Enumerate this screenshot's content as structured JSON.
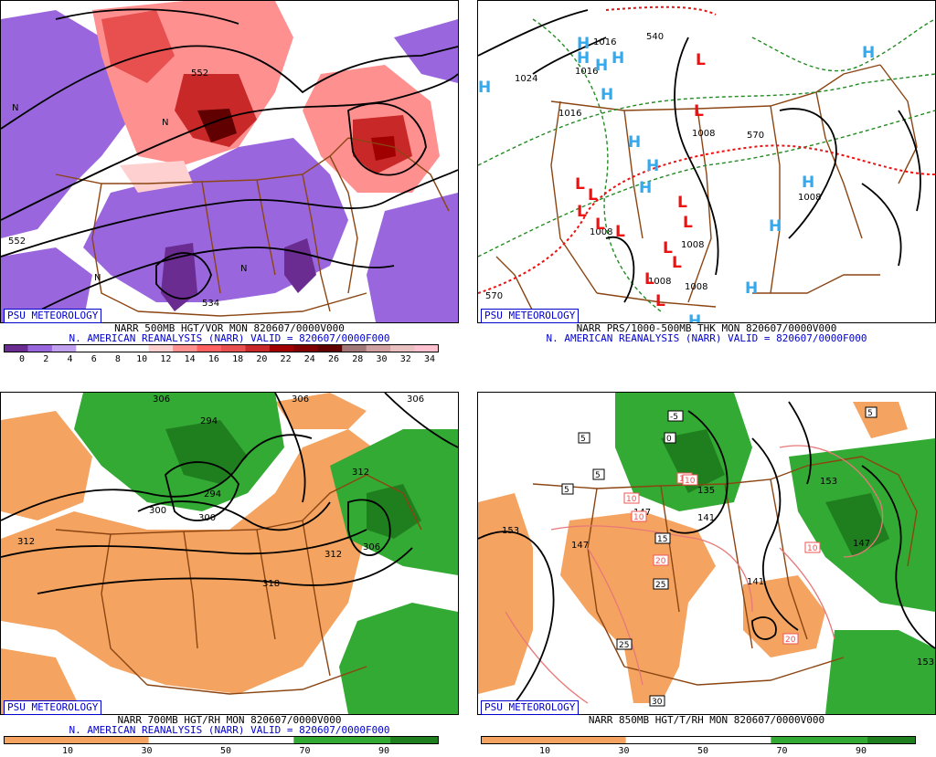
{
  "colors": {
    "vort_pos": [
      "#ffffff",
      "#ffd0d0",
      "#ff9090",
      "#e85050",
      "#c82828",
      "#a00000",
      "#600000"
    ],
    "vort_neg": "#9966dd",
    "dry": "#f4a460",
    "moist": "#33aa33",
    "moist_dark": "#1f7f1f",
    "border": "#8b4513",
    "high": "#33aaee",
    "low": "#ee1111",
    "credit": "#0000cc"
  },
  "panels": [
    {
      "id": "tl",
      "credit": "PSU METEOROLOGY",
      "line1": "NARR 500MB HGT/VOR MON 820607/0000V000",
      "line2": "N. AMERICAN REANALYSIS (NARR) VALID = 820607/0000F000",
      "colorbar": {
        "colors": [
          "#6a2c91",
          "#9966dd",
          "#c0a0ee",
          "#ffffff",
          "#ffffff",
          "#ffffff",
          "#ffd0d0",
          "#ff9090",
          "#ff6060",
          "#e85050",
          "#c82828",
          "#a00000",
          "#800000",
          "#600000",
          "#a07878",
          "#d0a0a0",
          "#e8c0c0",
          "#ffc0d0"
        ],
        "ticks": [
          "0",
          "2",
          "4",
          "6",
          "8",
          "10",
          "12",
          "14",
          "16",
          "18",
          "20",
          "22",
          "24",
          "26",
          "28",
          "30",
          "32",
          "34"
        ]
      },
      "contour_labels": [
        "552",
        "552",
        "534",
        "N",
        "N",
        "N",
        "N"
      ]
    },
    {
      "id": "tr",
      "credit": "PSU METEOROLOGY",
      "line1": "NARR PRS/1000-500MB THK MON 820607/0000V000",
      "line2": "N. AMERICAN REANALYSIS (NARR) VALID = 820607/0000F000",
      "pressure_labels": [
        "1024",
        "1016",
        "1016",
        "1016",
        "1008",
        "1008",
        "1008",
        "1008",
        "1008",
        "1008",
        "570",
        "540",
        "570"
      ],
      "high_symbol": "H",
      "low_symbol": "L"
    },
    {
      "id": "bl",
      "credit": "PSU METEOROLOGY",
      "line1": "NARR 700MB HGT/RH MON 820607/0000V000",
      "line2": "N. AMERICAN REANALYSIS (NARR) VALID = 820607/0000F000",
      "colorbar": {
        "colors": [
          "#f4a460",
          "#f4a460",
          "#f4a460",
          "#ffffff",
          "#ffffff",
          "#ffffff",
          "#33aa33",
          "#33aa33",
          "#1f7f1f"
        ],
        "ticks": [
          "10",
          "30",
          "50",
          "70",
          "90"
        ]
      },
      "contour_labels": [
        "306",
        "306",
        "294",
        "294",
        "300",
        "300",
        "306",
        "312",
        "312",
        "312",
        "318",
        "306"
      ]
    },
    {
      "id": "br",
      "credit": "PSU METEOROLOGY",
      "line1": "NARR 850MB HGT/T/RH MON 820607/0000V000",
      "line2": "",
      "colorbar": {
        "colors": [
          "#f4a460",
          "#f4a460",
          "#f4a460",
          "#ffffff",
          "#ffffff",
          "#ffffff",
          "#33aa33",
          "#33aa33",
          "#1f7f1f"
        ],
        "ticks": [
          "10",
          "30",
          "50",
          "70",
          "90"
        ]
      },
      "contour_labels": [
        "153",
        "147",
        "147",
        "141",
        "135",
        "153",
        "147",
        "153",
        "141"
      ],
      "temp_labels": [
        "-5",
        "5",
        "5",
        "5",
        "0",
        "10",
        "10",
        "10",
        "15",
        "20",
        "25",
        "25",
        "30",
        "20",
        "10",
        "10",
        "5"
      ]
    }
  ]
}
